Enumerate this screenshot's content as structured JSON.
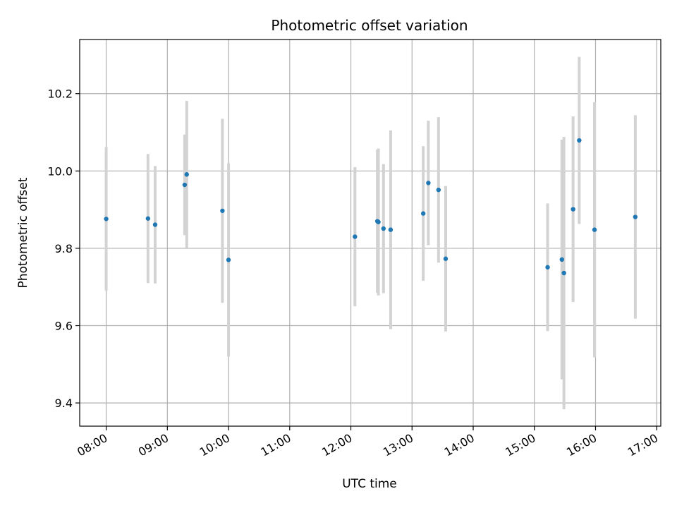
{
  "chart_data": {
    "type": "scatter",
    "title": "Photometric offset variation",
    "xlabel": "UTC time",
    "ylabel": "Photometric offset",
    "x_ticks": [
      "08:00",
      "09:00",
      "10:00",
      "11:00",
      "12:00",
      "13:00",
      "14:00",
      "15:00",
      "16:00",
      "17:00"
    ],
    "y_ticks": [
      9.4,
      9.6,
      9.8,
      10.0,
      10.2
    ],
    "y_tick_labels": [
      "9.4",
      "9.6",
      "9.8",
      "10.0",
      "10.2"
    ],
    "xlim": [
      "07:34",
      "17:04"
    ],
    "ylim": [
      9.34,
      10.34
    ],
    "grid": true,
    "colors": {
      "point": "#1f77b4",
      "errorbar": "#d3d3d3",
      "grid": "#b0b0b0"
    },
    "points": [
      {
        "x": "08:00",
        "y": 9.876,
        "yerr": 0.186
      },
      {
        "x": "08:41",
        "y": 9.877,
        "yerr": 0.167
      },
      {
        "x": "08:48",
        "y": 9.861,
        "yerr": 0.152
      },
      {
        "x": "09:17",
        "y": 9.964,
        "yerr": 0.13
      },
      {
        "x": "09:19",
        "y": 9.991,
        "yerr": 0.19
      },
      {
        "x": "09:54",
        "y": 9.897,
        "yerr": 0.238
      },
      {
        "x": "10:00",
        "y": 9.77,
        "yerr": 0.25
      },
      {
        "x": "12:04",
        "y": 9.83,
        "yerr": 0.18
      },
      {
        "x": "12:26",
        "y": 9.87,
        "yerr": 0.185
      },
      {
        "x": "12:27",
        "y": 9.868,
        "yerr": 0.19
      },
      {
        "x": "12:32",
        "y": 9.851,
        "yerr": 0.167
      },
      {
        "x": "12:39",
        "y": 9.848,
        "yerr": 0.257
      },
      {
        "x": "13:11",
        "y": 9.89,
        "yerr": 0.174
      },
      {
        "x": "13:16",
        "y": 9.969,
        "yerr": 0.161
      },
      {
        "x": "13:26",
        "y": 9.951,
        "yerr": 0.188
      },
      {
        "x": "13:33",
        "y": 9.773,
        "yerr": 0.188
      },
      {
        "x": "15:13",
        "y": 9.751,
        "yerr": 0.165
      },
      {
        "x": "15:27",
        "y": 9.771,
        "yerr": 0.31
      },
      {
        "x": "15:29",
        "y": 9.736,
        "yerr": 0.352
      },
      {
        "x": "15:38",
        "y": 9.901,
        "yerr": 0.24
      },
      {
        "x": "15:44",
        "y": 10.079,
        "yerr": 0.216
      },
      {
        "x": "15:59",
        "y": 9.848,
        "yerr": 0.33
      },
      {
        "x": "16:39",
        "y": 9.881,
        "yerr": 0.263
      }
    ]
  }
}
